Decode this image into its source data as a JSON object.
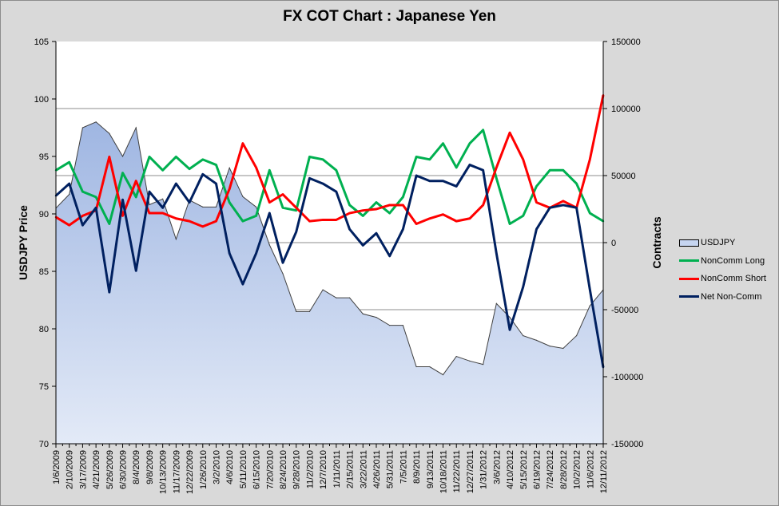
{
  "chart_data": {
    "type": "line",
    "title": "FX COT Chart : Japanese Yen",
    "ylabel_left": "USDJPY Price",
    "ylabel_right": "Contracts",
    "ylim_left": [
      70,
      105
    ],
    "yticks_left": [
      70,
      75,
      80,
      85,
      90,
      95,
      100,
      105
    ],
    "ylim_right": [
      -150000,
      150000
    ],
    "yticks_right": [
      -150000,
      -100000,
      -50000,
      0,
      50000,
      100000,
      150000
    ],
    "grid": "horizontal at right-axis ticks",
    "legend_position": "right",
    "x": [
      "1/6/2009",
      "2/10/2009",
      "3/17/2009",
      "4/21/2009",
      "5/26/2009",
      "6/30/2009",
      "8/4/2009",
      "9/8/2009",
      "10/13/2009",
      "11/17/2009",
      "12/22/2009",
      "1/26/2010",
      "3/2/2010",
      "4/6/2010",
      "5/11/2010",
      "6/15/2010",
      "7/20/2010",
      "8/24/2010",
      "9/28/2010",
      "11/2/2010",
      "12/7/2010",
      "1/11/2011",
      "2/15/2011",
      "3/22/2011",
      "4/26/2011",
      "5/31/2011",
      "7/5/2011",
      "8/9/2011",
      "9/13/2011",
      "10/18/2011",
      "11/22/2011",
      "12/27/2011",
      "1/31/2012",
      "3/6/2012",
      "4/10/2012",
      "5/15/2012",
      "6/19/2012",
      "7/24/2012",
      "8/28/2012",
      "10/2/2012",
      "11/6/2012",
      "12/11/2012"
    ],
    "series": [
      {
        "name": "USDJPY",
        "axis": "left",
        "style": "area",
        "color": "#b4c7e7",
        "values": [
          90.5,
          91.7,
          97.5,
          98,
          97,
          95,
          97.5,
          90.8,
          91.3,
          87.8,
          91.2,
          90.6,
          90.6,
          94,
          91.5,
          90.6,
          87.3,
          84.8,
          81.5,
          81.5,
          83.4,
          82.7,
          82.7,
          81.3,
          81,
          80.3,
          80.3,
          76.7,
          76.7,
          76,
          77.6,
          77.2,
          76.9,
          82.2,
          81,
          79.4,
          79,
          78.5,
          78.3,
          79.4,
          82,
          83.4
        ]
      },
      {
        "name": "NonComm Long",
        "axis": "right",
        "color": "#00b050",
        "values": [
          54000,
          60000,
          38000,
          34000,
          14000,
          52000,
          34000,
          64000,
          54000,
          64000,
          55000,
          62000,
          58000,
          30000,
          16000,
          20000,
          54000,
          26000,
          24000,
          64000,
          62000,
          54000,
          28000,
          20000,
          30000,
          22000,
          34000,
          64000,
          62000,
          74000,
          56000,
          74000,
          84000,
          48000,
          14000,
          20000,
          42000,
          54000,
          54000,
          44000,
          22000,
          16000
        ]
      },
      {
        "name": "NonComm Short",
        "axis": "right",
        "color": "#ff0000",
        "values": [
          19000,
          13000,
          20000,
          24000,
          64000,
          20000,
          46000,
          22000,
          22000,
          18000,
          16000,
          12000,
          16000,
          40000,
          74000,
          56000,
          30000,
          36000,
          26000,
          16000,
          17000,
          17000,
          22000,
          24000,
          25000,
          28000,
          28000,
          14000,
          18000,
          21000,
          16000,
          18000,
          28000,
          56000,
          82000,
          62000,
          30000,
          26000,
          31000,
          26000,
          62000,
          110000
        ]
      },
      {
        "name": "Net Non-Comm",
        "axis": "right",
        "color": "#002060",
        "values": [
          35000,
          44000,
          13000,
          26000,
          -37000,
          32000,
          -21000,
          38000,
          26000,
          44000,
          30000,
          51000,
          44000,
          -8000,
          -31000,
          -8000,
          22000,
          -15000,
          8000,
          48000,
          44000,
          38000,
          10000,
          -2000,
          7000,
          -10000,
          10000,
          50000,
          46000,
          46000,
          42000,
          58000,
          54000,
          -8000,
          -65000,
          -33000,
          10000,
          26000,
          28000,
          26000,
          -35000,
          -93000
        ]
      }
    ]
  }
}
